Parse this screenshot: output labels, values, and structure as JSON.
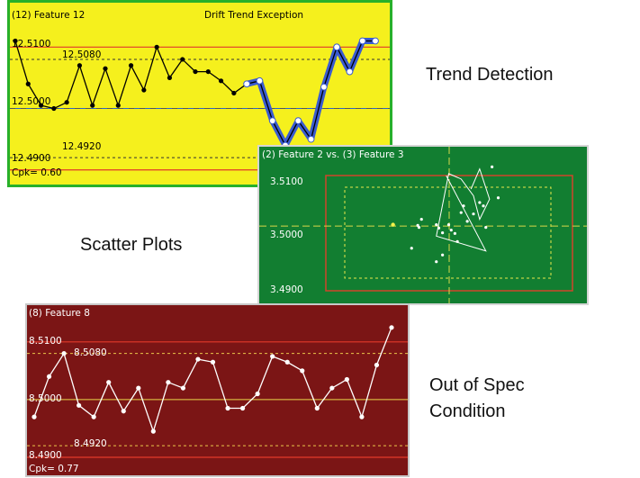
{
  "captions": {
    "trend": "Trend Detection",
    "scatter": "Scatter Plots",
    "oos_line1": "Out of Spec",
    "oos_line2": "Condition"
  },
  "colors": {
    "trend_bg": "#f5f01d",
    "scatter_bg": "#127e31",
    "oos_bg": "#7b1515",
    "spec_limit": "#e23a2a",
    "highlight": "#3a5bd0"
  },
  "chart_data": [
    {
      "type": "line",
      "title": "(12) Feature  12",
      "subtitle": "Drift Trend Exception",
      "y_labels": {
        "usl": "12.5100",
        "ucl": "12.5080",
        "center": "12.5000",
        "lcl": "12.4920",
        "lsl": "12.4900"
      },
      "limits": {
        "usl": 12.51,
        "ucl": 12.508,
        "center": 12.5,
        "lcl": 12.492,
        "lsl": 12.49
      },
      "ylim": [
        12.4885,
        12.514
      ],
      "footer": "Cpk= 0.60",
      "values": [
        12.511,
        12.504,
        12.5005,
        12.5,
        12.501,
        12.507,
        12.5005,
        12.5065,
        12.5005,
        12.507,
        12.503,
        12.51,
        12.505,
        12.508,
        12.506,
        12.506,
        12.5045,
        12.5025,
        12.504,
        12.5045,
        12.498,
        12.494,
        12.498,
        12.495,
        12.5035,
        12.51,
        12.506,
        12.511,
        12.511
      ],
      "highlight_from_index": 18
    },
    {
      "type": "scatter",
      "title": "(2) Feature  2 vs. (3) Feature  3",
      "y_labels": [
        "3.5100",
        "3.5000",
        "3.4900"
      ],
      "ylim": [
        3.4885,
        3.5118
      ],
      "xlim": [
        -1,
        1
      ],
      "points": [
        [
          -0.45,
          3.5002
        ],
        [
          -0.25,
          3.5001
        ],
        [
          -0.24,
          3.4998
        ],
        [
          -0.22,
          3.501
        ],
        [
          -0.1,
          3.5002
        ],
        [
          -0.08,
          3.4997
        ],
        [
          -0.05,
          3.499
        ],
        [
          0.0,
          3.5002
        ],
        [
          0.02,
          3.4994
        ],
        [
          0.05,
          3.4989
        ],
        [
          0.07,
          3.4977
        ],
        [
          0.1,
          3.502
        ],
        [
          0.12,
          3.503
        ],
        [
          0.15,
          3.5007
        ],
        [
          0.2,
          3.5018
        ],
        [
          0.25,
          3.5035
        ],
        [
          0.28,
          3.503
        ],
        [
          0.3,
          3.4998
        ],
        [
          0.35,
          3.5088
        ],
        [
          0.4,
          3.5042
        ],
        [
          -0.3,
          3.4967
        ],
        [
          -0.1,
          3.4947
        ],
        [
          -0.05,
          3.4957
        ]
      ],
      "trail": [
        [
          -0.02,
          3.5075
        ],
        [
          0.3,
          3.4963
        ],
        [
          -0.1,
          3.4985
        ],
        [
          0.0,
          3.5078
        ],
        [
          0.1,
          3.507
        ],
        [
          0.2,
          3.5045
        ],
        [
          0.25,
          3.501
        ],
        [
          0.33,
          3.504
        ],
        [
          0.25,
          3.5085
        ],
        [
          0.18,
          3.5055
        ]
      ]
    },
    {
      "type": "line",
      "title": "(8) Feature  8",
      "y_labels": {
        "usl": "8.5100",
        "ucl": "8.5080",
        "center": "8.5000",
        "lcl": "8.4920",
        "lsl": "8.4900"
      },
      "limits": {
        "usl": 8.51,
        "ucl": 8.508,
        "center": 8.5,
        "lcl": 8.492,
        "lsl": 8.49
      },
      "ylim": [
        8.4875,
        8.5145
      ],
      "footer": "Cpk= 0.77",
      "values": [
        8.497,
        8.504,
        8.508,
        8.499,
        8.497,
        8.503,
        8.498,
        8.502,
        8.4945,
        8.503,
        8.502,
        8.507,
        8.5065,
        8.4985,
        8.4985,
        8.501,
        8.5075,
        8.5065,
        8.505,
        8.4985,
        8.502,
        8.5035,
        8.497,
        8.506,
        8.5125
      ]
    }
  ]
}
